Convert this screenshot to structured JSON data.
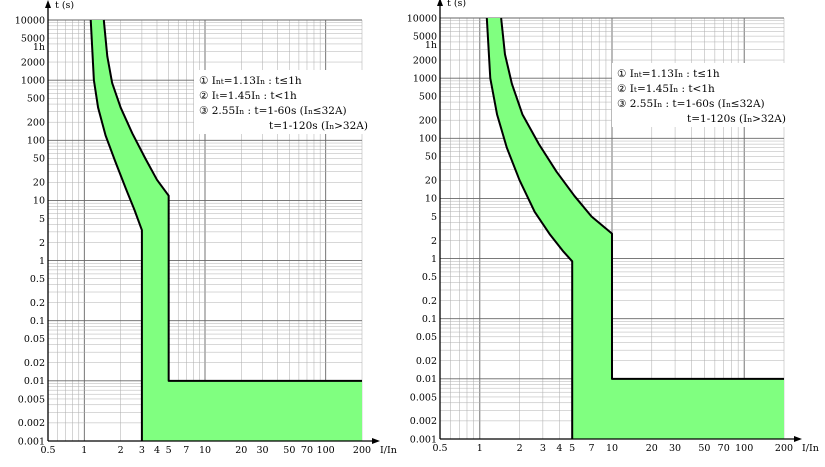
{
  "chart_data": [
    {
      "type": "area",
      "xlabel": "I/In",
      "ylabel": "t (s)",
      "xscale": "log",
      "yscale": "log",
      "xlim": [
        0.5,
        200
      ],
      "ylim": [
        0.001,
        10000
      ],
      "grid": true,
      "fill_color": "#80ff80",
      "x_ticks": [
        {
          "value": 0.5,
          "label": "0.5"
        },
        {
          "value": 1,
          "label": "1"
        },
        {
          "value": 2,
          "label": "2"
        },
        {
          "value": 3,
          "label": "3"
        },
        {
          "value": 4,
          "label": "4"
        },
        {
          "value": 5,
          "label": "5"
        },
        {
          "value": 7,
          "label": "7"
        },
        {
          "value": 10,
          "label": "10"
        },
        {
          "value": 20,
          "label": "20"
        },
        {
          "value": 30,
          "label": "30"
        },
        {
          "value": 50,
          "label": "50"
        },
        {
          "value": 70,
          "label": "70"
        },
        {
          "value": 100,
          "label": "100"
        },
        {
          "value": 200,
          "label": "200"
        }
      ],
      "y_ticks": [
        {
          "value": 10000,
          "label": "10000"
        },
        {
          "value": 5000,
          "label": "5000"
        },
        {
          "value": 3600,
          "label": "1h"
        },
        {
          "value": 2000,
          "label": "2000"
        },
        {
          "value": 1000,
          "label": "1000"
        },
        {
          "value": 500,
          "label": "500"
        },
        {
          "value": 200,
          "label": "200"
        },
        {
          "value": 100,
          "label": "100"
        },
        {
          "value": 50,
          "label": "50"
        },
        {
          "value": 20,
          "label": "20"
        },
        {
          "value": 10,
          "label": "10"
        },
        {
          "value": 5,
          "label": "5"
        },
        {
          "value": 2,
          "label": "2"
        },
        {
          "value": 1,
          "label": "1"
        },
        {
          "value": 0.5,
          "label": "0.5"
        },
        {
          "value": 0.2,
          "label": "0.2"
        },
        {
          "value": 0.1,
          "label": "0.1"
        },
        {
          "value": 0.05,
          "label": "0.05"
        },
        {
          "value": 0.02,
          "label": "0.02"
        },
        {
          "value": 0.01,
          "label": "0.01"
        },
        {
          "value": 0.005,
          "label": "0.005"
        },
        {
          "value": 0.002,
          "label": "0.002"
        },
        {
          "value": 0.001,
          "label": "0.001"
        }
      ],
      "series": [
        {
          "role": "lower-boundary",
          "x": [
            1.13,
            1.2,
            1.3,
            1.5,
            1.8,
            2.2,
            2.6,
            3.0,
            3.0
          ],
          "y": [
            10000,
            1000,
            350,
            120,
            45,
            16,
            7,
            3.2,
            0.001
          ]
        },
        {
          "role": "upper-boundary",
          "x": [
            1.45,
            1.55,
            1.7,
            2.0,
            2.5,
            3.2,
            4.0,
            5.0,
            5.0,
            200
          ],
          "y": [
            10000,
            2500,
            900,
            350,
            130,
            50,
            22,
            12,
            0.01,
            0.01
          ]
        }
      ],
      "annotations": [
        "①  Int=1.13In : t≤1h",
        "②  It=1.45In : t<1h",
        "③  2.55In : t=1-60s (In≤32A)",
        "t=1-120s (In>32A)"
      ]
    },
    {
      "type": "area",
      "xlabel": "I/In",
      "ylabel": "t (s)",
      "xscale": "log",
      "yscale": "log",
      "xlim": [
        0.5,
        200
      ],
      "ylim": [
        0.001,
        10000
      ],
      "grid": true,
      "fill_color": "#80ff80",
      "x_ticks": [
        {
          "value": 0.5,
          "label": "0.5"
        },
        {
          "value": 1,
          "label": "1"
        },
        {
          "value": 2,
          "label": "2"
        },
        {
          "value": 3,
          "label": "3"
        },
        {
          "value": 4,
          "label": "4"
        },
        {
          "value": 5,
          "label": "5"
        },
        {
          "value": 7,
          "label": "7"
        },
        {
          "value": 10,
          "label": "10"
        },
        {
          "value": 20,
          "label": "20"
        },
        {
          "value": 30,
          "label": "30"
        },
        {
          "value": 50,
          "label": "50"
        },
        {
          "value": 70,
          "label": "70"
        },
        {
          "value": 100,
          "label": "100"
        },
        {
          "value": 200,
          "label": "200"
        }
      ],
      "y_ticks": [
        {
          "value": 10000,
          "label": "10000"
        },
        {
          "value": 5000,
          "label": "5000"
        },
        {
          "value": 3600,
          "label": "1h"
        },
        {
          "value": 2000,
          "label": "2000"
        },
        {
          "value": 1000,
          "label": "1000"
        },
        {
          "value": 500,
          "label": "500"
        },
        {
          "value": 200,
          "label": "200"
        },
        {
          "value": 100,
          "label": "100"
        },
        {
          "value": 50,
          "label": "50"
        },
        {
          "value": 20,
          "label": "20"
        },
        {
          "value": 10,
          "label": "10"
        },
        {
          "value": 5,
          "label": "5"
        },
        {
          "value": 2,
          "label": "2"
        },
        {
          "value": 1,
          "label": "1"
        },
        {
          "value": 0.5,
          "label": "0.5"
        },
        {
          "value": 0.2,
          "label": "0.2"
        },
        {
          "value": 0.1,
          "label": "0.1"
        },
        {
          "value": 0.05,
          "label": "0.05"
        },
        {
          "value": 0.02,
          "label": "0.02"
        },
        {
          "value": 0.01,
          "label": "0.01"
        },
        {
          "value": 0.005,
          "label": "0.005"
        },
        {
          "value": 0.002,
          "label": "0.002"
        },
        {
          "value": 0.001,
          "label": "0.001"
        }
      ],
      "series": [
        {
          "role": "lower-boundary",
          "x": [
            1.13,
            1.2,
            1.35,
            1.6,
            2.0,
            2.6,
            3.4,
            4.3,
            5.0,
            5.0
          ],
          "y": [
            10000,
            1000,
            250,
            70,
            20,
            6,
            2.5,
            1.3,
            0.9,
            0.001
          ]
        },
        {
          "role": "upper-boundary",
          "x": [
            1.45,
            1.55,
            1.75,
            2.1,
            2.8,
            3.8,
            5.2,
            7.0,
            10.0,
            10.0,
            200
          ],
          "y": [
            10000,
            2500,
            800,
            250,
            80,
            28,
            11,
            5,
            2.6,
            0.01,
            0.01
          ]
        }
      ],
      "annotations": [
        "①  Int=1.13In : t≤1h",
        "②  It=1.45In : t<1h",
        "③  2.55In : t=1-60s (In≤32A)",
        "t=1-120s (In>32A)"
      ]
    }
  ]
}
